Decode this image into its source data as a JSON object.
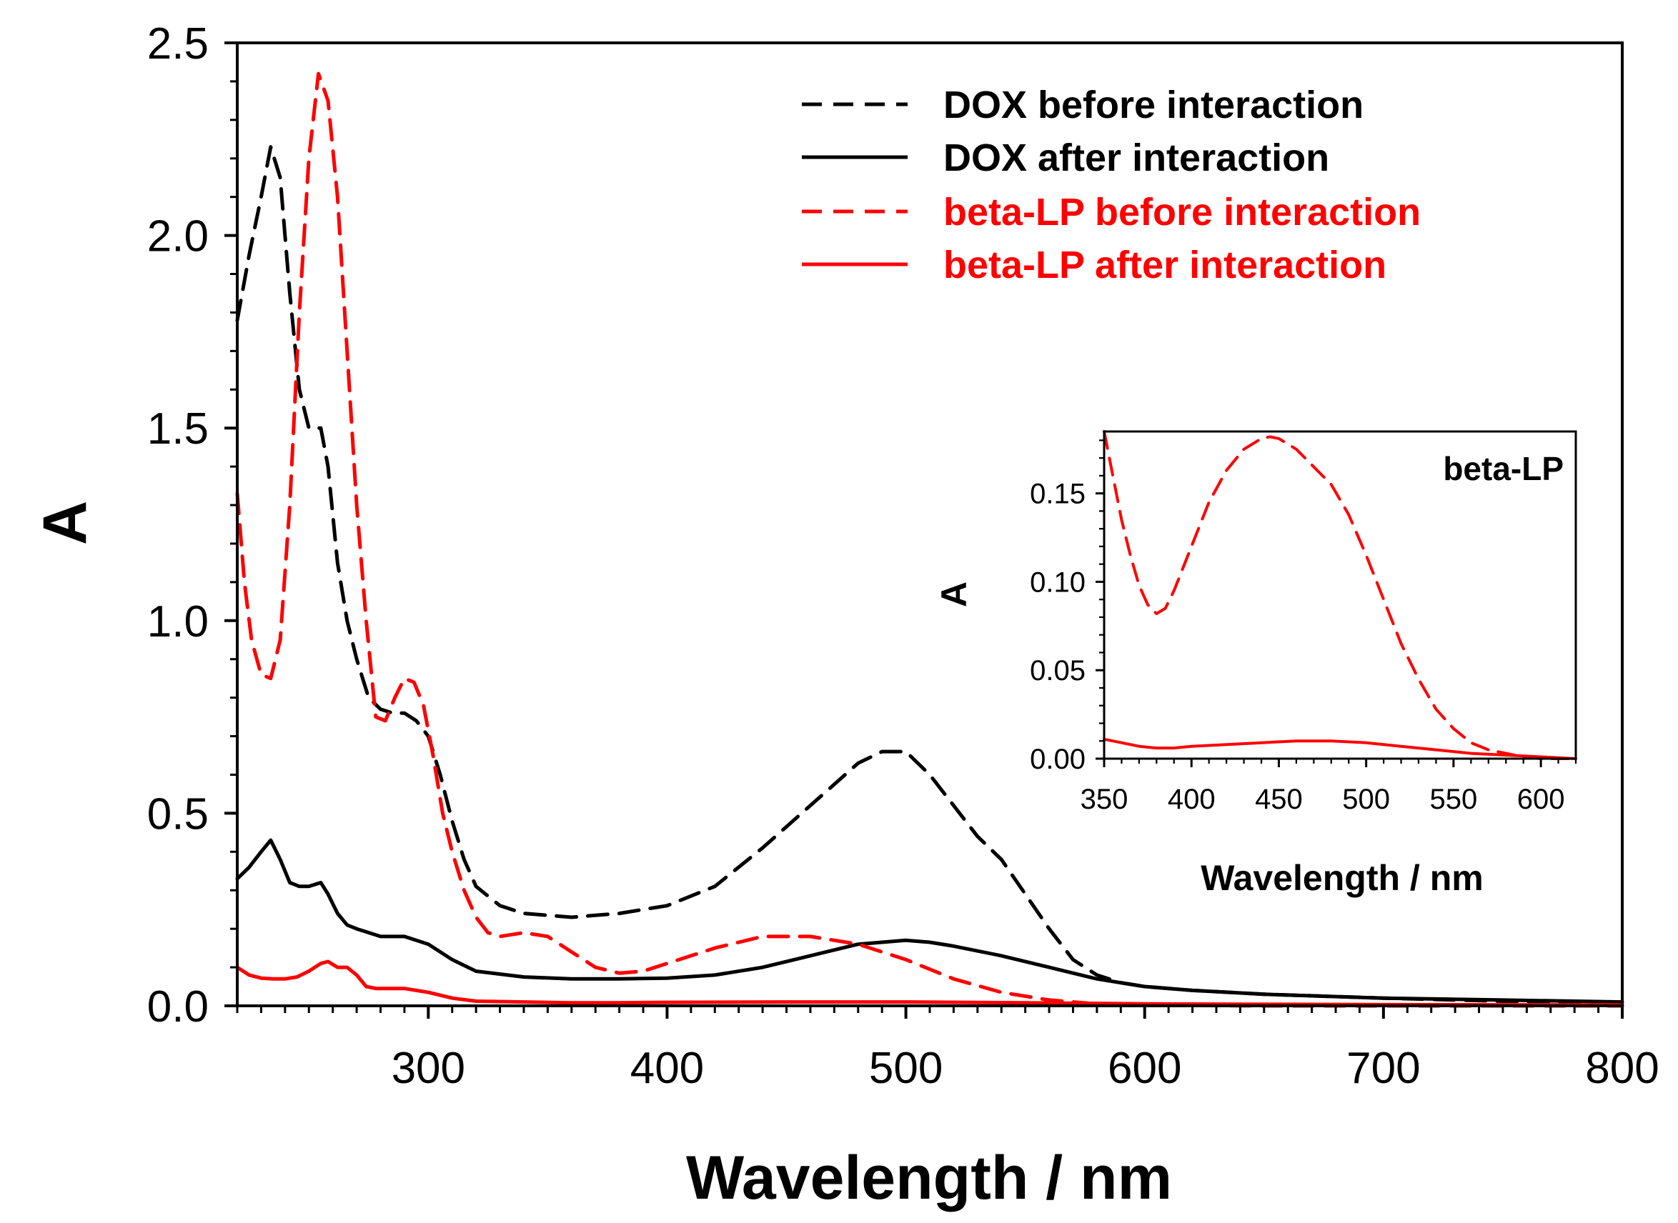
{
  "chart_data": [
    {
      "type": "line",
      "xlabel": "Wavelength / nm",
      "ylabel": "A",
      "xlim": [
        220,
        800
      ],
      "ylim": [
        0,
        2.5
      ],
      "xticks": [
        "300",
        "400",
        "500",
        "600",
        "700",
        "800"
      ],
      "yticks": [
        "0.0",
        "0.5",
        "1.0",
        "1.5",
        "2.0",
        "2.5"
      ],
      "legend_position": "top-right",
      "series": [
        {
          "name": "DOX before interaction",
          "color": "#000000",
          "dashed": true,
          "x": [
            220,
            225,
            230,
            234,
            238,
            242,
            246,
            250,
            255,
            258,
            262,
            266,
            270,
            275,
            280,
            285,
            290,
            295,
            300,
            305,
            310,
            315,
            320,
            330,
            340,
            360,
            380,
            400,
            420,
            440,
            460,
            480,
            490,
            500,
            510,
            520,
            530,
            540,
            550,
            560,
            570,
            580,
            590,
            600,
            620,
            650,
            700,
            750,
            800
          ],
          "y": [
            1.78,
            1.95,
            2.1,
            2.23,
            2.15,
            1.85,
            1.6,
            1.5,
            1.5,
            1.4,
            1.15,
            1.0,
            0.9,
            0.8,
            0.77,
            0.76,
            0.76,
            0.74,
            0.7,
            0.6,
            0.48,
            0.38,
            0.31,
            0.26,
            0.24,
            0.23,
            0.24,
            0.26,
            0.31,
            0.41,
            0.52,
            0.63,
            0.66,
            0.66,
            0.6,
            0.52,
            0.44,
            0.38,
            0.29,
            0.2,
            0.12,
            0.08,
            0.06,
            0.05,
            0.04,
            0.03,
            0.02,
            0.012,
            0.008
          ]
        },
        {
          "name": "DOX after interaction",
          "color": "#000000",
          "dashed": false,
          "x": [
            220,
            225,
            230,
            234,
            238,
            242,
            246,
            250,
            255,
            258,
            262,
            266,
            270,
            280,
            290,
            300,
            310,
            320,
            340,
            360,
            380,
            400,
            420,
            440,
            460,
            480,
            500,
            510,
            520,
            540,
            560,
            580,
            600,
            620,
            650,
            700,
            750,
            800
          ],
          "y": [
            0.33,
            0.36,
            0.4,
            0.43,
            0.38,
            0.32,
            0.31,
            0.31,
            0.32,
            0.29,
            0.24,
            0.21,
            0.2,
            0.18,
            0.18,
            0.16,
            0.12,
            0.09,
            0.075,
            0.07,
            0.07,
            0.072,
            0.08,
            0.1,
            0.13,
            0.16,
            0.17,
            0.165,
            0.155,
            0.13,
            0.1,
            0.07,
            0.05,
            0.04,
            0.03,
            0.02,
            0.015,
            0.01
          ]
        },
        {
          "name": "beta-LP before interaction",
          "color": "#ff0000",
          "dashed": true,
          "x": [
            220,
            223,
            226,
            230,
            234,
            238,
            242,
            246,
            250,
            254,
            258,
            262,
            266,
            270,
            274,
            278,
            282,
            286,
            290,
            294,
            298,
            302,
            306,
            310,
            315,
            320,
            325,
            330,
            340,
            350,
            360,
            370,
            380,
            390,
            400,
            420,
            440,
            460,
            480,
            500,
            520,
            540,
            560,
            580,
            600,
            620,
            650,
            700,
            800
          ],
          "y": [
            1.33,
            1.1,
            0.95,
            0.86,
            0.85,
            0.95,
            1.3,
            1.8,
            2.2,
            2.42,
            2.35,
            2.1,
            1.7,
            1.3,
            1.0,
            0.75,
            0.74,
            0.8,
            0.85,
            0.84,
            0.78,
            0.65,
            0.5,
            0.4,
            0.3,
            0.23,
            0.19,
            0.18,
            0.19,
            0.18,
            0.14,
            0.1,
            0.085,
            0.09,
            0.11,
            0.15,
            0.18,
            0.18,
            0.16,
            0.12,
            0.07,
            0.035,
            0.015,
            0.005,
            0.002,
            0.001,
            0.0,
            0.0,
            0.0
          ]
        },
        {
          "name": "beta-LP after interaction",
          "color": "#ff0000",
          "dashed": false,
          "x": [
            220,
            225,
            230,
            235,
            240,
            245,
            250,
            255,
            258,
            262,
            266,
            270,
            274,
            278,
            282,
            290,
            300,
            310,
            320,
            340,
            360,
            380,
            400,
            450,
            500,
            550,
            600,
            700,
            800
          ],
          "y": [
            0.1,
            0.08,
            0.072,
            0.07,
            0.07,
            0.075,
            0.09,
            0.11,
            0.115,
            0.1,
            0.1,
            0.08,
            0.05,
            0.045,
            0.045,
            0.045,
            0.035,
            0.02,
            0.012,
            0.01,
            0.008,
            0.008,
            0.009,
            0.01,
            0.01,
            0.008,
            0.005,
            0.003,
            0.002
          ]
        }
      ]
    },
    {
      "type": "line",
      "title": "beta-LP",
      "xlabel": "Wavelength / nm",
      "ylabel": "A",
      "xlim": [
        350,
        620
      ],
      "ylim": [
        0,
        0.185
      ],
      "xticks": [
        "350",
        "400",
        "450",
        "500",
        "550",
        "600"
      ],
      "yticks": [
        "0.00",
        "0.05",
        "0.10",
        "0.15"
      ],
      "series": [
        {
          "name": "beta-LP before interaction",
          "color": "#ff0000",
          "dashed": true,
          "x": [
            350,
            355,
            360,
            365,
            370,
            375,
            380,
            385,
            390,
            400,
            410,
            420,
            430,
            440,
            445,
            450,
            460,
            470,
            480,
            490,
            500,
            510,
            520,
            530,
            540,
            550,
            560,
            570,
            580,
            590,
            600,
            610,
            620
          ],
          "y": [
            0.185,
            0.16,
            0.135,
            0.115,
            0.098,
            0.087,
            0.082,
            0.085,
            0.095,
            0.12,
            0.145,
            0.163,
            0.175,
            0.181,
            0.182,
            0.181,
            0.175,
            0.165,
            0.155,
            0.138,
            0.115,
            0.09,
            0.065,
            0.045,
            0.028,
            0.017,
            0.009,
            0.005,
            0.003,
            0.001,
            0.0,
            0.0,
            0.0
          ]
        },
        {
          "name": "beta-LP after interaction",
          "color": "#ff0000",
          "dashed": false,
          "x": [
            350,
            360,
            370,
            380,
            390,
            400,
            420,
            440,
            460,
            480,
            500,
            520,
            540,
            560,
            580,
            600,
            620
          ],
          "y": [
            0.011,
            0.009,
            0.007,
            0.006,
            0.006,
            0.007,
            0.008,
            0.009,
            0.01,
            0.01,
            0.009,
            0.007,
            0.005,
            0.003,
            0.002,
            0.001,
            0.0
          ]
        }
      ]
    }
  ]
}
